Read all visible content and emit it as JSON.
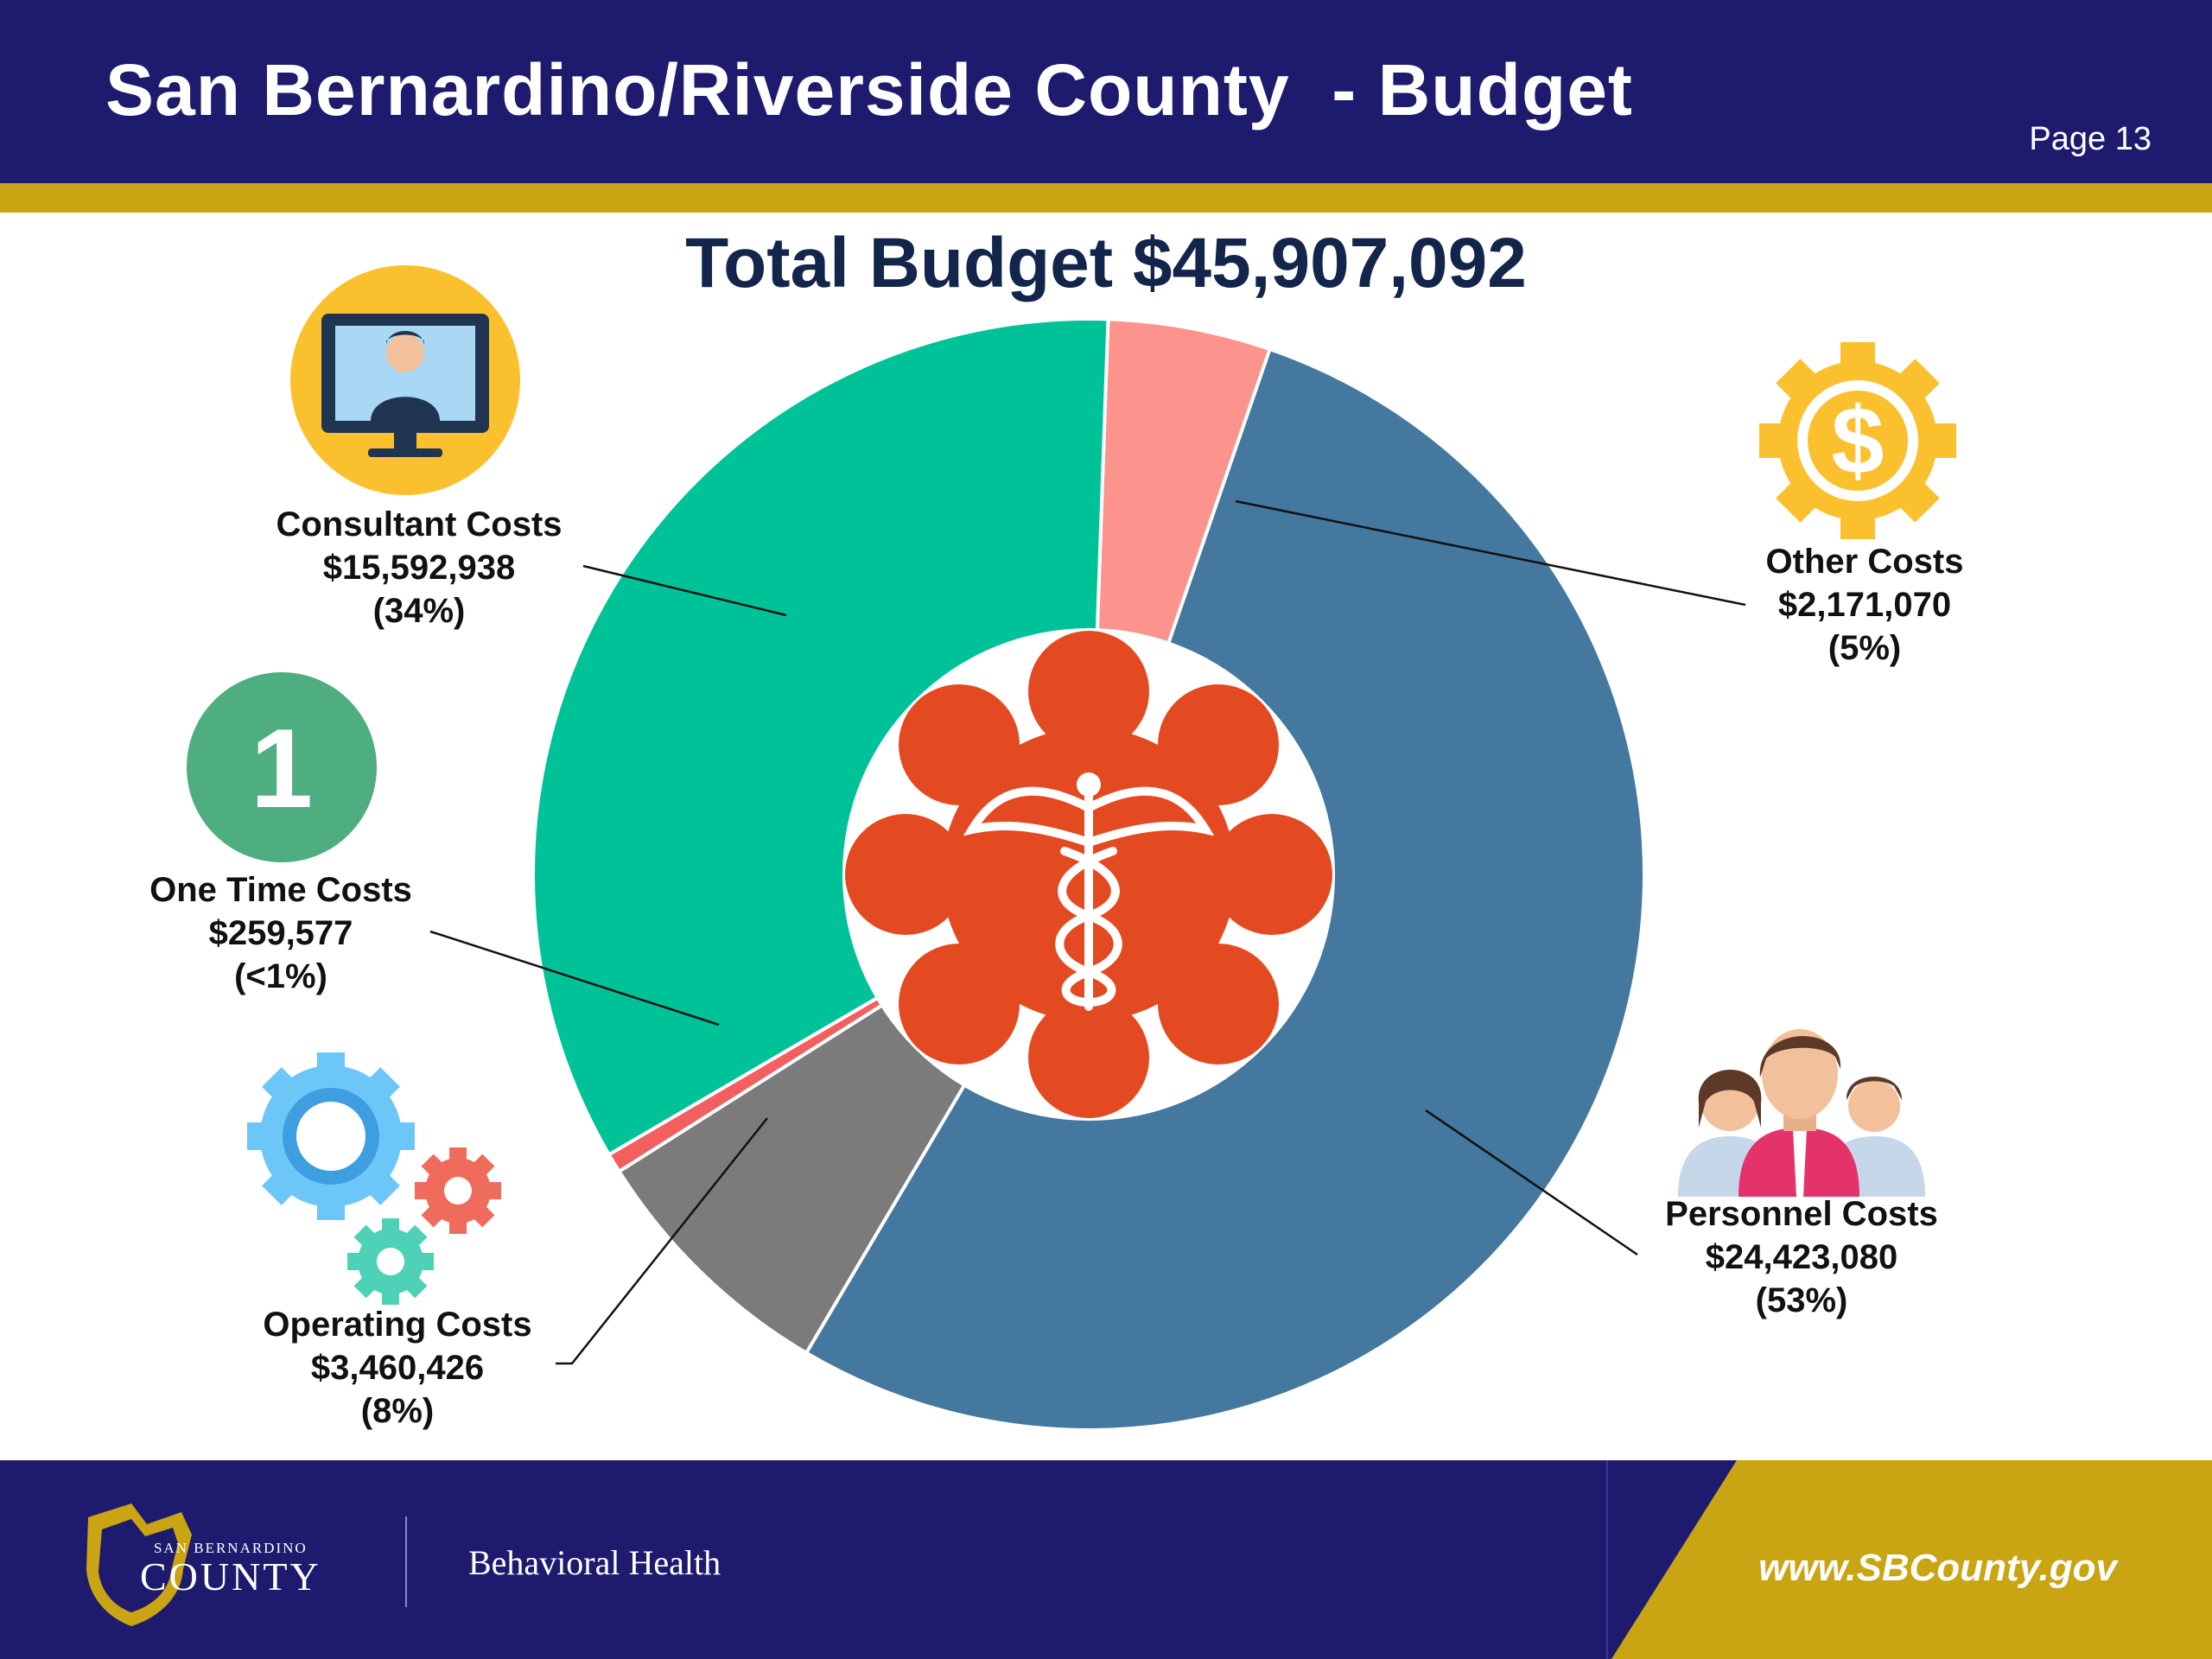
{
  "header": {
    "title": "San Bernardino/Riverside County  - Budget",
    "page": "Page 13"
  },
  "chart_data": {
    "type": "pie",
    "title": "Total Budget $45,907,092",
    "series": [
      {
        "name": "Other Costs",
        "value": 2171070,
        "value_label": "$2,171,070",
        "percent_label": "(5%)",
        "color": "#fc948d"
      },
      {
        "name": "Personnel Costs",
        "value": 24423080,
        "value_label": "$24,423,080",
        "percent_label": "(53%)",
        "color": "#44789f"
      },
      {
        "name": "Operating Costs",
        "value": 3460426,
        "value_label": "$3,460,426",
        "percent_label": "(8%)",
        "color": "#7b7b7b"
      },
      {
        "name": "One Time Costs",
        "value": 259577,
        "value_label": "$259,577",
        "percent_label": "(<1%)",
        "color": "#f35e5e"
      },
      {
        "name": "Consultant Costs",
        "value": 15592938,
        "value_label": "$15,592,938",
        "percent_label": "(34%)",
        "color": "#00c298"
      }
    ],
    "center_icon": "caduceus-medical-star-icon"
  },
  "icons": {
    "consultant": "computer-user-icon",
    "one_time": "number-one-badge-icon",
    "operating": "gears-icon",
    "other": "dollar-gear-icon",
    "personnel": "people-group-icon"
  },
  "footer": {
    "county_top": "SAN BERNARDINO",
    "county_main": "COUNTY",
    "department": "Behavioral Health",
    "url": "www.SBCounty.gov"
  },
  "colors": {
    "navy": "#1e1b6e",
    "gold": "#c9a413",
    "title_text": "#13254a"
  }
}
